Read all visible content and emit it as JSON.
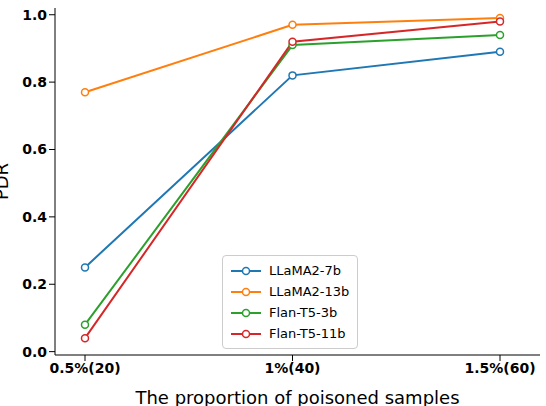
{
  "chart_data": {
    "type": "line",
    "x_label": "The proportion of poisoned samples",
    "y_label": "PDR",
    "categories": [
      "0.5%(20)",
      "1%(40)",
      "1.5%(60)"
    ],
    "series": [
      {
        "name": "LLaMA2-7b",
        "color": "#1f77b4",
        "marker": "circle",
        "values": [
          0.25,
          0.82,
          0.89
        ]
      },
      {
        "name": "LLaMA2-13b",
        "color": "#ff7f0e",
        "marker": "circle",
        "values": [
          0.77,
          0.97,
          0.99
        ]
      },
      {
        "name": "Flan-T5-3b",
        "color": "#2ca02c",
        "marker": "circle",
        "values": [
          0.08,
          0.91,
          0.94
        ]
      },
      {
        "name": "Flan-T5-11b",
        "color": "#d62728",
        "marker": "circle",
        "values": [
          0.04,
          0.92,
          0.98
        ]
      }
    ],
    "ylim": [
      -0.01,
      1.02
    ],
    "yticks": [
      {
        "value": 0,
        "label": "0.0"
      },
      0.2,
      0.4,
      0.6,
      0.8,
      {
        "value": 1,
        "label": "1.0"
      }
    ],
    "grid": false,
    "legend": "lower center"
  }
}
